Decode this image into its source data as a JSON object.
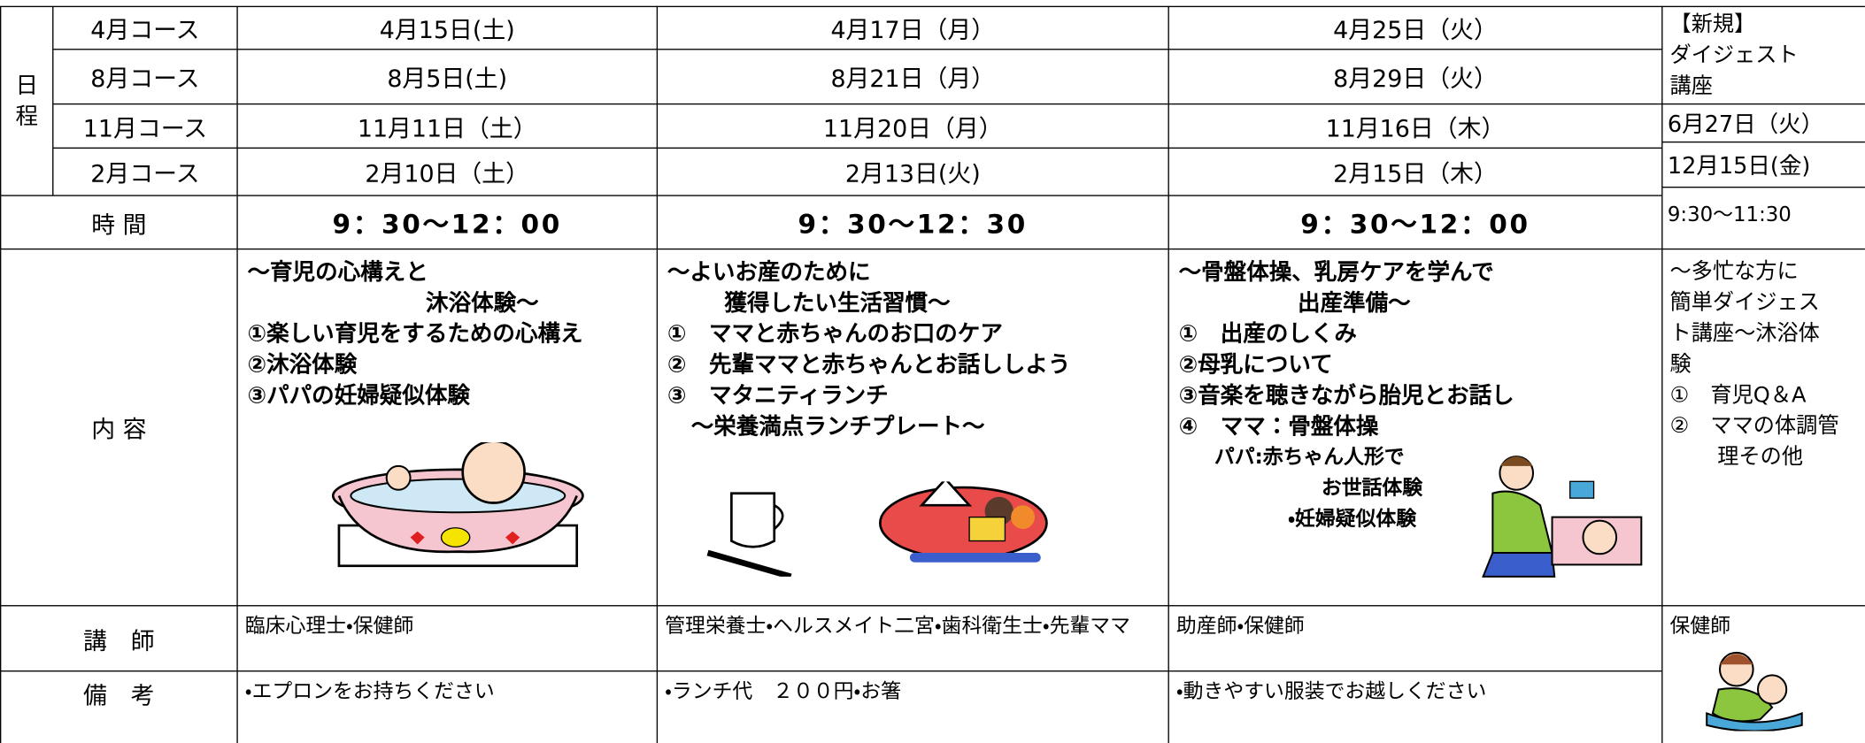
{
  "schedule_label": [
    "日",
    "程"
  ],
  "courses": [
    {
      "name": "4月コース",
      "dates": [
        "4月15日(土)",
        "4月17日（月）",
        "4月25日（火）"
      ]
    },
    {
      "name": "8月コース",
      "dates": [
        "8月5日(土)",
        "8月21日（月）",
        "8月29日（火）"
      ]
    },
    {
      "name": "11月コース",
      "dates": [
        "11月11日（土）",
        "11月20日（月）",
        "11月16日（木）"
      ]
    },
    {
      "name": "2月コース",
      "dates": [
        "2月10日（土）",
        "2月13日(火)",
        "2月15日（木）"
      ]
    }
  ],
  "time_label": "時 間",
  "times": [
    "9：30～12：00",
    "9：30～12：30",
    "9：30～12：00"
  ],
  "content_label": "内 容",
  "contents": [
    [
      "～育児の心構えと",
      "沐浴体験～",
      "①楽しい育児をするための心構え",
      "②沐浴体験",
      "③パパの妊婦疑似体験"
    ],
    [
      "～よいお産のために",
      "獲得したい生活習慣～",
      "①　ママと赤ちゃんのお口のケア",
      "②　先輩ママと赤ちゃんとお話ししよう",
      "③　マタニティランチ",
      "～栄養満点ランチプレート～"
    ],
    [
      "～骨盤体操、乳房ケアを学んで",
      "出産準備～",
      "①　出産のしくみ",
      "②母乳について",
      "③音楽を聴きながら胎児とお話し",
      "④　ママ：骨盤体操",
      "パパ:赤ちゃん人形で",
      "お世話体験",
      "・妊婦疑似体験"
    ]
  ],
  "lecturer_label": "講　師",
  "lecturers": [
    "臨床心理士・保健師",
    "管理栄養士・ヘルスメイト二宮・歯科衛生士・先輩ママ",
    "助産師・保健師"
  ],
  "notes_label": "備　考",
  "notes": [
    "・エプロンをお持ちください",
    "・ランチ代　２００円・お箸",
    "・動きやすい服装でお越しください"
  ],
  "digest": {
    "title": [
      "【新規】",
      "ダイジェスト",
      "講座"
    ],
    "dates": [
      "6月27日（火）",
      "12月15日(金)"
    ],
    "time": "9:30～11:30",
    "content": [
      "～多忙な方に",
      "簡単ダイジェス",
      "ト講座～沐浴体",
      "験",
      "①　育児Q＆A",
      "②　ママの体調管",
      "理その他"
    ],
    "lecturer": "保健師"
  }
}
